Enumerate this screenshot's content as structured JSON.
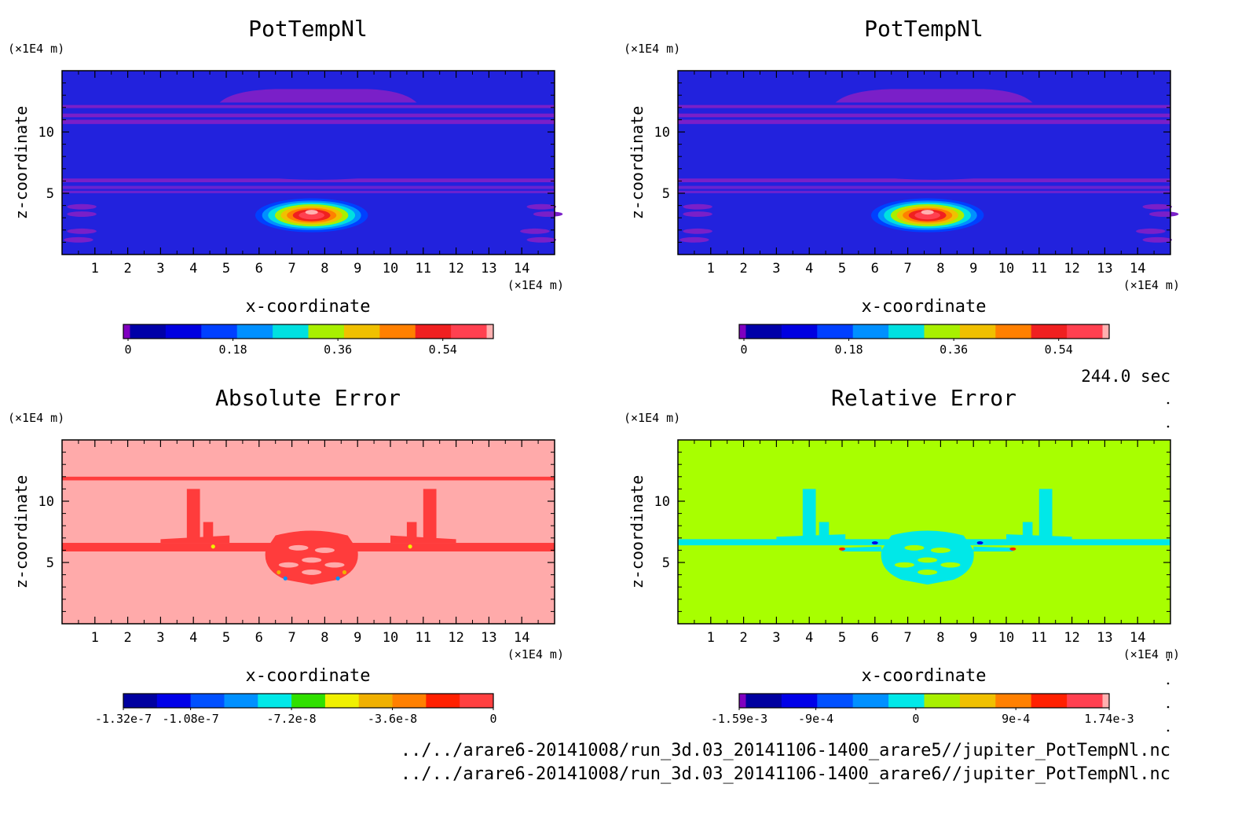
{
  "time_label": "244.0 sec",
  "file_lines": [
    "../../arare6-20141008/run_3d.03_20141106-1400_arare5//jupiter_PotTempNl.nc",
    "../../arare6-20141008/run_3d.03_20141106-1400_arare6//jupiter_PotTempNl.nc"
  ],
  "chart_data": [
    {
      "type": "heatmap",
      "title": "PotTempNl",
      "xlabel": "x-coordinate",
      "ylabel": "z-coordinate",
      "x_unit": "(×1E4 m)",
      "y_unit": "(×1E4 m)",
      "xlim": [
        0,
        15
      ],
      "ylim": [
        0,
        15
      ],
      "xticks": [
        "1",
        "2",
        "3",
        "4",
        "5",
        "6",
        "7",
        "8",
        "9",
        "10",
        "11",
        "12",
        "13",
        "14"
      ],
      "yticks": [
        "5",
        "10"
      ],
      "background": "#2222dd",
      "colorbar": {
        "colors": [
          "#8000c0",
          "#0000a8",
          "#0000e0",
          "#0040ff",
          "#0090ff",
          "#00e0e0",
          "#a8f000",
          "#f0c000",
          "#ff8000",
          "#f02020",
          "#ff4050",
          "#ffb0b0"
        ],
        "labels": [
          "0",
          "0.18",
          "0.36",
          "0.54"
        ],
        "label_values": [
          0,
          0.18,
          0.36,
          0.54
        ],
        "range": [
          -0.01,
          0.62
        ]
      },
      "features": "warm bubble centred at x≈7.6, z≈3.2 (max ≈0.6); weak bands near z≈11 and z≈6"
    },
    {
      "type": "heatmap",
      "title": "PotTempNl",
      "xlabel": "x-coordinate",
      "ylabel": "z-coordinate",
      "x_unit": "(×1E4 m)",
      "y_unit": "(×1E4 m)",
      "xlim": [
        0,
        15
      ],
      "ylim": [
        0,
        15
      ],
      "xticks": [
        "1",
        "2",
        "3",
        "4",
        "5",
        "6",
        "7",
        "8",
        "9",
        "10",
        "11",
        "12",
        "13",
        "14"
      ],
      "yticks": [
        "5",
        "10"
      ],
      "background": "#2222dd",
      "colorbar": {
        "colors": [
          "#8000c0",
          "#0000a8",
          "#0000e0",
          "#0040ff",
          "#0090ff",
          "#00e0e0",
          "#a8f000",
          "#f0c000",
          "#ff8000",
          "#f02020",
          "#ff4050",
          "#ffb0b0"
        ],
        "labels": [
          "0",
          "0.18",
          "0.36",
          "0.54"
        ],
        "label_values": [
          0,
          0.18,
          0.36,
          0.54
        ],
        "range": [
          -0.01,
          0.62
        ]
      },
      "features": "identical to left panel"
    },
    {
      "type": "heatmap",
      "title": "Absolute Error",
      "xlabel": "x-coordinate",
      "ylabel": "z-coordinate",
      "x_unit": "(×1E4 m)",
      "y_unit": "(×1E4 m)",
      "xlim": [
        0,
        15
      ],
      "ylim": [
        0,
        15
      ],
      "xticks": [
        "1",
        "2",
        "3",
        "4",
        "5",
        "6",
        "7",
        "8",
        "9",
        "10",
        "11",
        "12",
        "13",
        "14"
      ],
      "yticks": [
        "5",
        "10"
      ],
      "background": "#ffaaaa",
      "colorbar": {
        "colors": [
          "#0000a0",
          "#0000e8",
          "#0050ff",
          "#0090ff",
          "#00e8e8",
          "#30e000",
          "#f0f000",
          "#f0b000",
          "#ff8000",
          "#ff2000",
          "#ff4040"
        ],
        "labels": [
          "-1.32e-7",
          "-1.08e-7",
          "-7.2e-8",
          "-3.6e-8",
          "0"
        ],
        "label_values": [
          -1.32e-07,
          -1.08e-07,
          -7.2e-08,
          -3.6e-08,
          0
        ],
        "range": [
          -1.32e-07,
          0
        ]
      },
      "features": "negative-error bands near z≈12 and z≈6.3, towers near x≈3.9 and x≈11.1, blob around bubble"
    },
    {
      "type": "heatmap",
      "title": "Relative Error",
      "xlabel": "x-coordinate",
      "ylabel": "z-coordinate",
      "x_unit": "(×1E4 m)",
      "y_unit": "(×1E4 m)",
      "xlim": [
        0,
        15
      ],
      "ylim": [
        0,
        15
      ],
      "xticks": [
        "1",
        "2",
        "3",
        "4",
        "5",
        "6",
        "7",
        "8",
        "9",
        "10",
        "11",
        "12",
        "13",
        "14"
      ],
      "yticks": [
        "5",
        "10"
      ],
      "background": "#a8ff00",
      "colorbar": {
        "colors": [
          "#8000c0",
          "#0000a0",
          "#0000e8",
          "#0050ff",
          "#0090ff",
          "#00e8e8",
          "#a8f000",
          "#f0c000",
          "#ff8000",
          "#ff2000",
          "#ff4050",
          "#ffb0b0"
        ],
        "labels": [
          "-1.59e-3",
          "-9e-4",
          "0",
          "9e-4",
          "1.74e-3"
        ],
        "label_values": [
          -0.00159,
          -0.0009,
          0,
          0.0009,
          0.00174
        ],
        "range": [
          -0.00159,
          0.00174
        ]
      },
      "features": "near-zero everywhere with slightly negative band near z≈6.5, towers near x≈3.9 and x≈11.1"
    }
  ]
}
